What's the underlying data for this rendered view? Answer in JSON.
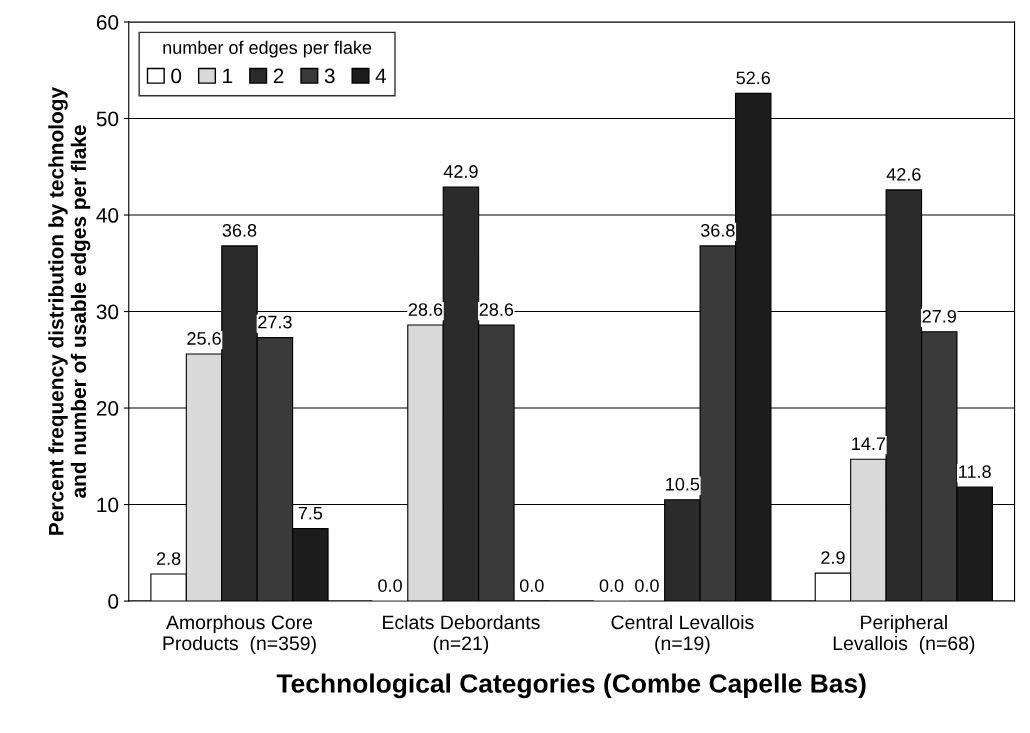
{
  "chart_data": {
    "type": "bar",
    "xlabel": "Technological Categories (Combe Capelle Bas)",
    "ylabel": "Percent frequency distribution by technology\nand number of usable edges per flake",
    "categories": [
      "Amorphous Core\nProducts  (n=359)",
      "Eclats Debordants\n(n=21)",
      "Central Levallois\n(n=19)",
      "Peripheral\nLevallois  (n=68)"
    ],
    "series": [
      {
        "name": "0",
        "color": "#ffffff",
        "values": [
          2.8,
          0.0,
          0.0,
          2.9
        ],
        "value_labels": [
          "2.8",
          "0.0",
          "0.0",
          "2.9"
        ]
      },
      {
        "name": "1",
        "color": "#d9d9d9",
        "values": [
          25.6,
          28.6,
          0.0,
          14.7
        ],
        "value_labels": [
          "25.6",
          "28.6",
          "0.0",
          "14.7"
        ]
      },
      {
        "name": "2",
        "color": "#2b2b2b",
        "values": [
          36.8,
          42.9,
          10.5,
          42.6
        ],
        "value_labels": [
          "36.8",
          "42.9",
          "10.5",
          "42.6"
        ]
      },
      {
        "name": "3",
        "color": "#3a3a3a",
        "values": [
          27.3,
          28.6,
          36.8,
          27.9
        ],
        "value_labels": [
          "27.3",
          "28.6",
          "36.8",
          "27.9"
        ]
      },
      {
        "name": "4",
        "color": "#1c1c1c",
        "values": [
          7.5,
          0.0,
          52.6,
          11.8
        ],
        "value_labels": [
          "7.5",
          "0.0",
          "52.6",
          "11.8"
        ]
      }
    ],
    "legend_title": "number of edges per flake",
    "legend": "top left",
    "ylim": [
      0,
      60
    ],
    "yticks": [
      0,
      10,
      20,
      30,
      40,
      50,
      60
    ],
    "grid": "y"
  }
}
